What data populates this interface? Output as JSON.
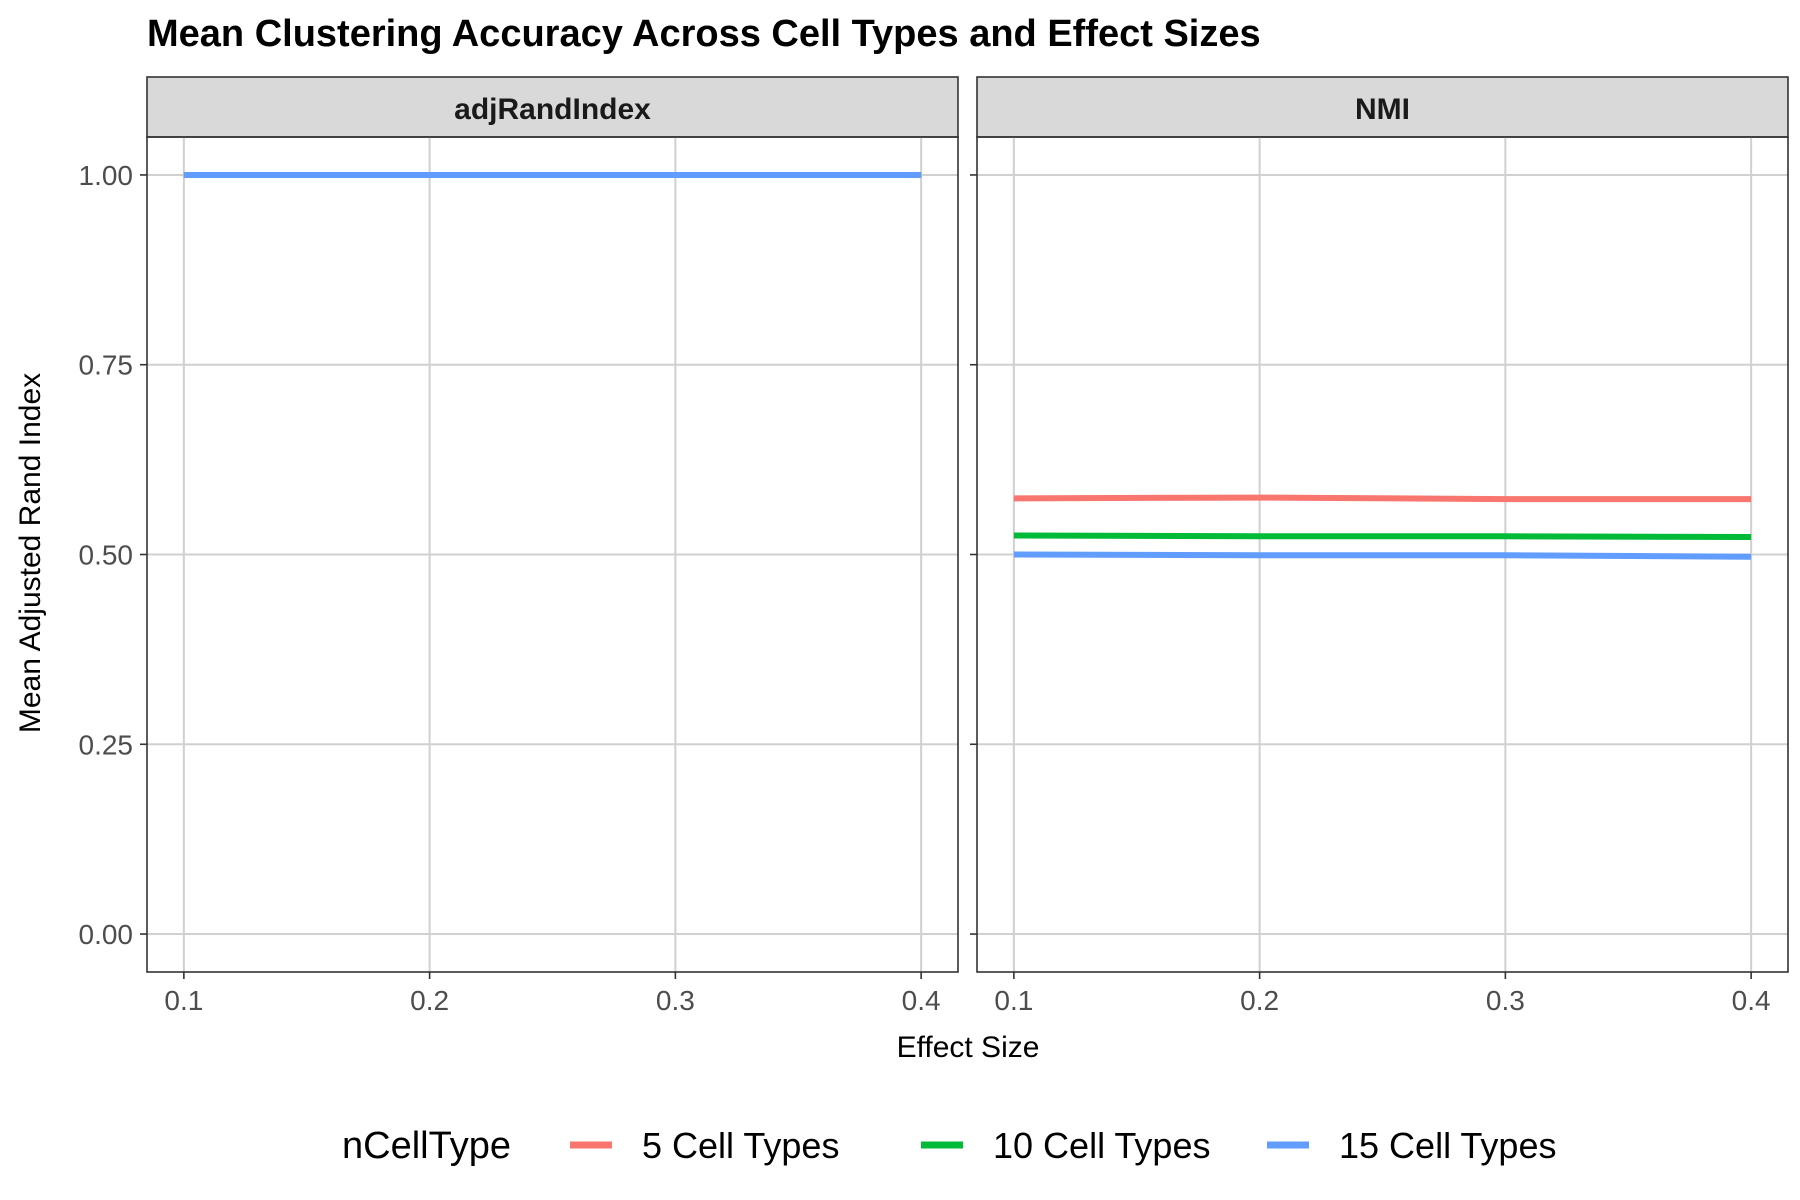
{
  "chart_data": {
    "type": "line",
    "title": "Mean Clustering Accuracy Across Cell Types and Effect Sizes",
    "xlabel": "Effect Size",
    "ylabel": "Mean Adjusted Rand Index",
    "xlim": [
      0.085,
      0.415
    ],
    "ylim": [
      -0.05,
      1.05
    ],
    "x_ticks": [
      0.1,
      0.2,
      0.3,
      0.4
    ],
    "x_tick_labels": [
      "0.1",
      "0.2",
      "0.3",
      "0.4"
    ],
    "y_ticks": [
      0,
      0.25,
      0.5,
      0.75,
      1.0
    ],
    "y_tick_labels": [
      "0.00",
      "0.25",
      "0.50",
      "0.75",
      "1.00"
    ],
    "grid": true,
    "legend": {
      "title": "nCellType",
      "position": "bottom",
      "entries": [
        {
          "label": "5 Cell Types",
          "color": "#f8766d"
        },
        {
          "label": "10 Cell Types",
          "color": "#00ba38"
        },
        {
          "label": "15 Cell Types",
          "color": "#619cff"
        }
      ]
    },
    "panels": [
      {
        "name": "adjRandIndex",
        "series": [
          {
            "name": "5 Cell Types",
            "color": "#f8766d",
            "x": [
              0.1,
              0.2,
              0.3,
              0.4
            ],
            "y": [
              1.0,
              1.0,
              1.0,
              1.0
            ]
          },
          {
            "name": "10 Cell Types",
            "color": "#00ba38",
            "x": [
              0.1,
              0.2,
              0.3,
              0.4
            ],
            "y": [
              1.0,
              1.0,
              1.0,
              1.0
            ]
          },
          {
            "name": "15 Cell Types",
            "color": "#619cff",
            "x": [
              0.1,
              0.2,
              0.3,
              0.4
            ],
            "y": [
              1.0,
              1.0,
              1.0,
              1.0
            ]
          }
        ]
      },
      {
        "name": "NMI",
        "series": [
          {
            "name": "5 Cell Types",
            "color": "#f8766d",
            "x": [
              0.1,
              0.2,
              0.3,
              0.4
            ],
            "y": [
              0.574,
              0.575,
              0.573,
              0.573
            ]
          },
          {
            "name": "10 Cell Types",
            "color": "#00ba38",
            "x": [
              0.1,
              0.2,
              0.3,
              0.4
            ],
            "y": [
              0.525,
              0.524,
              0.524,
              0.523
            ]
          },
          {
            "name": "15 Cell Types",
            "color": "#619cff",
            "x": [
              0.1,
              0.2,
              0.3,
              0.4
            ],
            "y": [
              0.5,
              0.499,
              0.499,
              0.497
            ]
          }
        ]
      }
    ]
  }
}
